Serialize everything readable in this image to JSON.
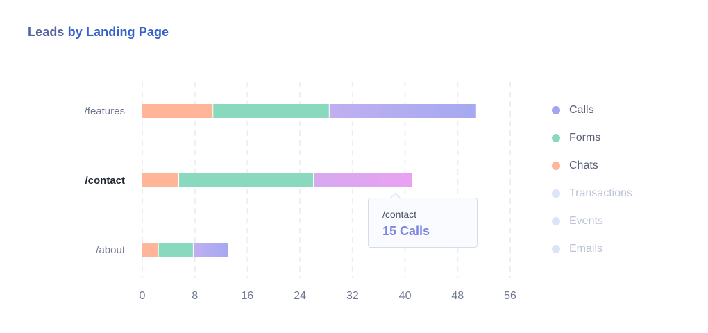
{
  "title": {
    "prefix": "Leads",
    "suffix": "by Landing Page"
  },
  "colors": {
    "title_prefix": "#5563a0",
    "title_suffix": "#3562c8",
    "grid": "#eceef3",
    "axis_label": "#6f7791",
    "category_label": "#6f7791",
    "category_active": "#1e2433",
    "tooltip_value": "#7b86df",
    "legend_active_text": "#5a6178",
    "legend_inactive_text": "#bcc4d6",
    "legend_inactive_dot": "#dce5f7"
  },
  "chart_data": {
    "type": "bar",
    "orientation": "horizontal",
    "stacked": true,
    "title": "Leads by Landing Page",
    "categories": [
      "/features",
      "/contact",
      "/about"
    ],
    "active_category": "/contact",
    "x_ticks": [
      "0",
      "8",
      "16",
      "24",
      "32",
      "40",
      "48",
      "56"
    ],
    "xlim": [
      0,
      56
    ],
    "grid": "vertical dashed",
    "series": [
      {
        "name": "Chats",
        "values": [
          10.7,
          5.5,
          2.4
        ],
        "color": "#ffb597"
      },
      {
        "name": "Forms",
        "values": [
          17.7,
          20.5,
          5.3
        ],
        "color": "#88d9bd"
      },
      {
        "name": "Calls",
        "values": [
          22.4,
          15,
          5.4
        ],
        "color": "#a5a9f1",
        "gradient_from": "#c0aff1"
      }
    ],
    "highlight": {
      "category": "/contact",
      "series": "Calls",
      "color": "#e9a2f1",
      "gradient_from": "#d6a9f0"
    },
    "tooltip": {
      "label": "/contact",
      "value": "15 Calls"
    }
  },
  "legend": [
    {
      "name": "Calls",
      "color": "#9fa5f0",
      "active": true
    },
    {
      "name": "Forms",
      "color": "#88d9bd",
      "active": true
    },
    {
      "name": "Chats",
      "color": "#ffb597",
      "active": true
    },
    {
      "name": "Transactions",
      "color": "#dce5f7",
      "active": false
    },
    {
      "name": "Events",
      "color": "#dce5f7",
      "active": false
    },
    {
      "name": "Emails",
      "color": "#dce5f7",
      "active": false
    }
  ]
}
